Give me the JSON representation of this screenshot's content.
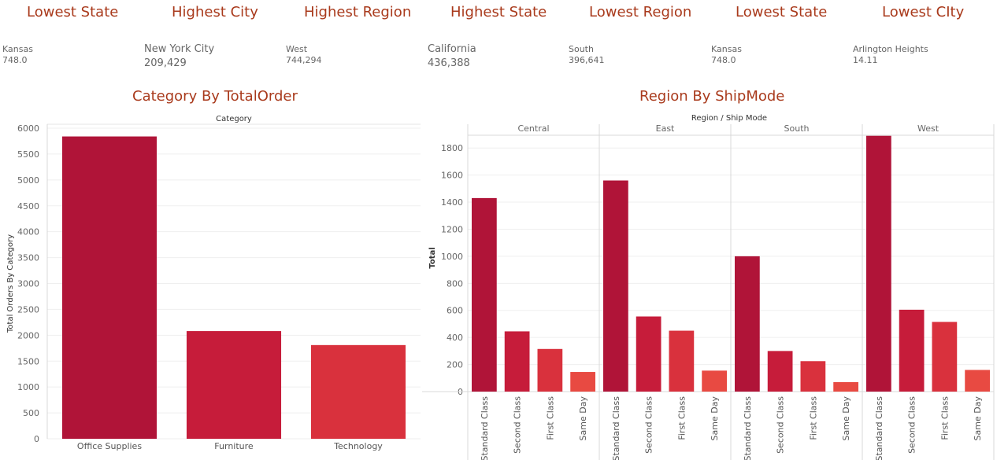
{
  "kpis": [
    {
      "title": "Lowest State",
      "label": "Kansas",
      "value": "748.0",
      "large": false
    },
    {
      "title": "Highest City",
      "label": "New York City",
      "value": "209,429",
      "large": true
    },
    {
      "title": "Highest Region",
      "label": "West",
      "value": "744,294",
      "large": false
    },
    {
      "title": "Highest State",
      "label": "California",
      "value": "436,388",
      "large": true
    },
    {
      "title": "Lowest Region",
      "label": "South",
      "value": "396,641",
      "large": false
    },
    {
      "title": "Lowest State",
      "label": "Kansas",
      "value": "748.0",
      "large": false
    },
    {
      "title": "Lowest CIty",
      "label": "Arlington Heights",
      "value": "14.11",
      "large": false
    }
  ],
  "colors": {
    "title": "#a93a1c",
    "bar_dark": "#b01438",
    "bar_mid": "#c61c3a",
    "bar_light": "#d9313d",
    "bar_lightest": "#e84a42"
  },
  "chart_data": [
    {
      "type": "bar",
      "title": "Category By TotalOrder",
      "header": "Category",
      "ylabel": "Total Orders By Category",
      "categories": [
        "Office Supplies",
        "Furniture",
        "Technology"
      ],
      "values": [
        5840,
        2080,
        1810
      ],
      "ylim": [
        0,
        6000
      ],
      "yticks": [
        0,
        500,
        1000,
        1500,
        2000,
        2500,
        3000,
        3500,
        4000,
        4500,
        5000,
        5500,
        6000
      ],
      "grid": true
    },
    {
      "type": "bar",
      "title": "Region By ShipMode",
      "header": "Region  /  Ship Mode",
      "ylabel": "Total",
      "regions": [
        "Central",
        "East",
        "South",
        "West"
      ],
      "categories": [
        "Standard Class",
        "Second Class",
        "First Class",
        "Same Day"
      ],
      "values": [
        [
          1430,
          445,
          315,
          145
        ],
        [
          1560,
          555,
          450,
          155
        ],
        [
          1000,
          300,
          225,
          70
        ],
        [
          1890,
          605,
          515,
          160
        ]
      ],
      "ylim": [
        0,
        1900
      ],
      "yticks": [
        0,
        200,
        400,
        600,
        800,
        1000,
        1200,
        1400,
        1600,
        1800
      ],
      "grid": true
    }
  ]
}
